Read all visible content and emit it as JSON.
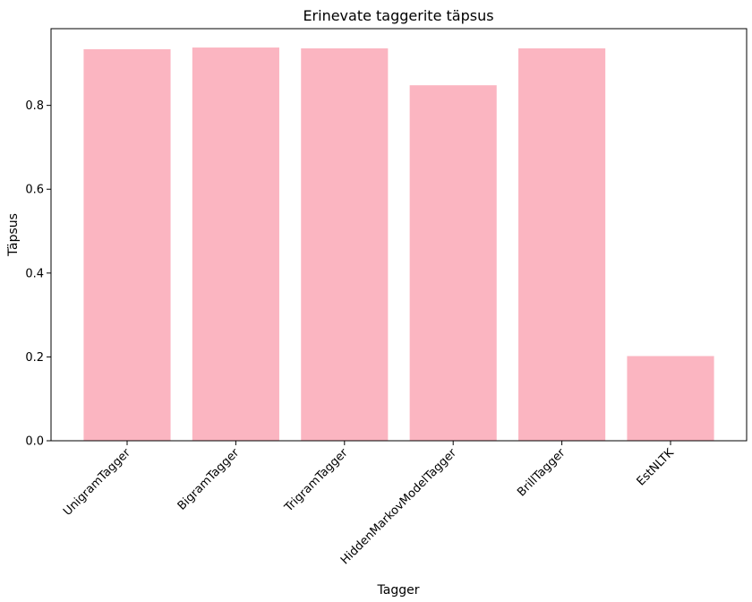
{
  "chart_data": {
    "type": "bar",
    "title": "Erinevate taggerite täpsus",
    "xlabel": "Tagger",
    "ylabel": "Täpsus",
    "categories": [
      "UnigramTagger",
      "BigramTagger",
      "TrigramTagger",
      "HiddenMarkovModelTagger",
      "BrillTagger",
      "EstNLTK"
    ],
    "values": [
      0.934,
      0.938,
      0.936,
      0.848,
      0.936,
      0.202
    ],
    "ylim": [
      0,
      0.983
    ],
    "yticks": [
      0.0,
      0.2,
      0.4,
      0.6,
      0.8
    ],
    "ytick_labels": [
      "0.0",
      "0.2",
      "0.4",
      "0.6",
      "0.8"
    ],
    "bar_color": "#FBB5C1",
    "grid": false,
    "legend": "none"
  }
}
